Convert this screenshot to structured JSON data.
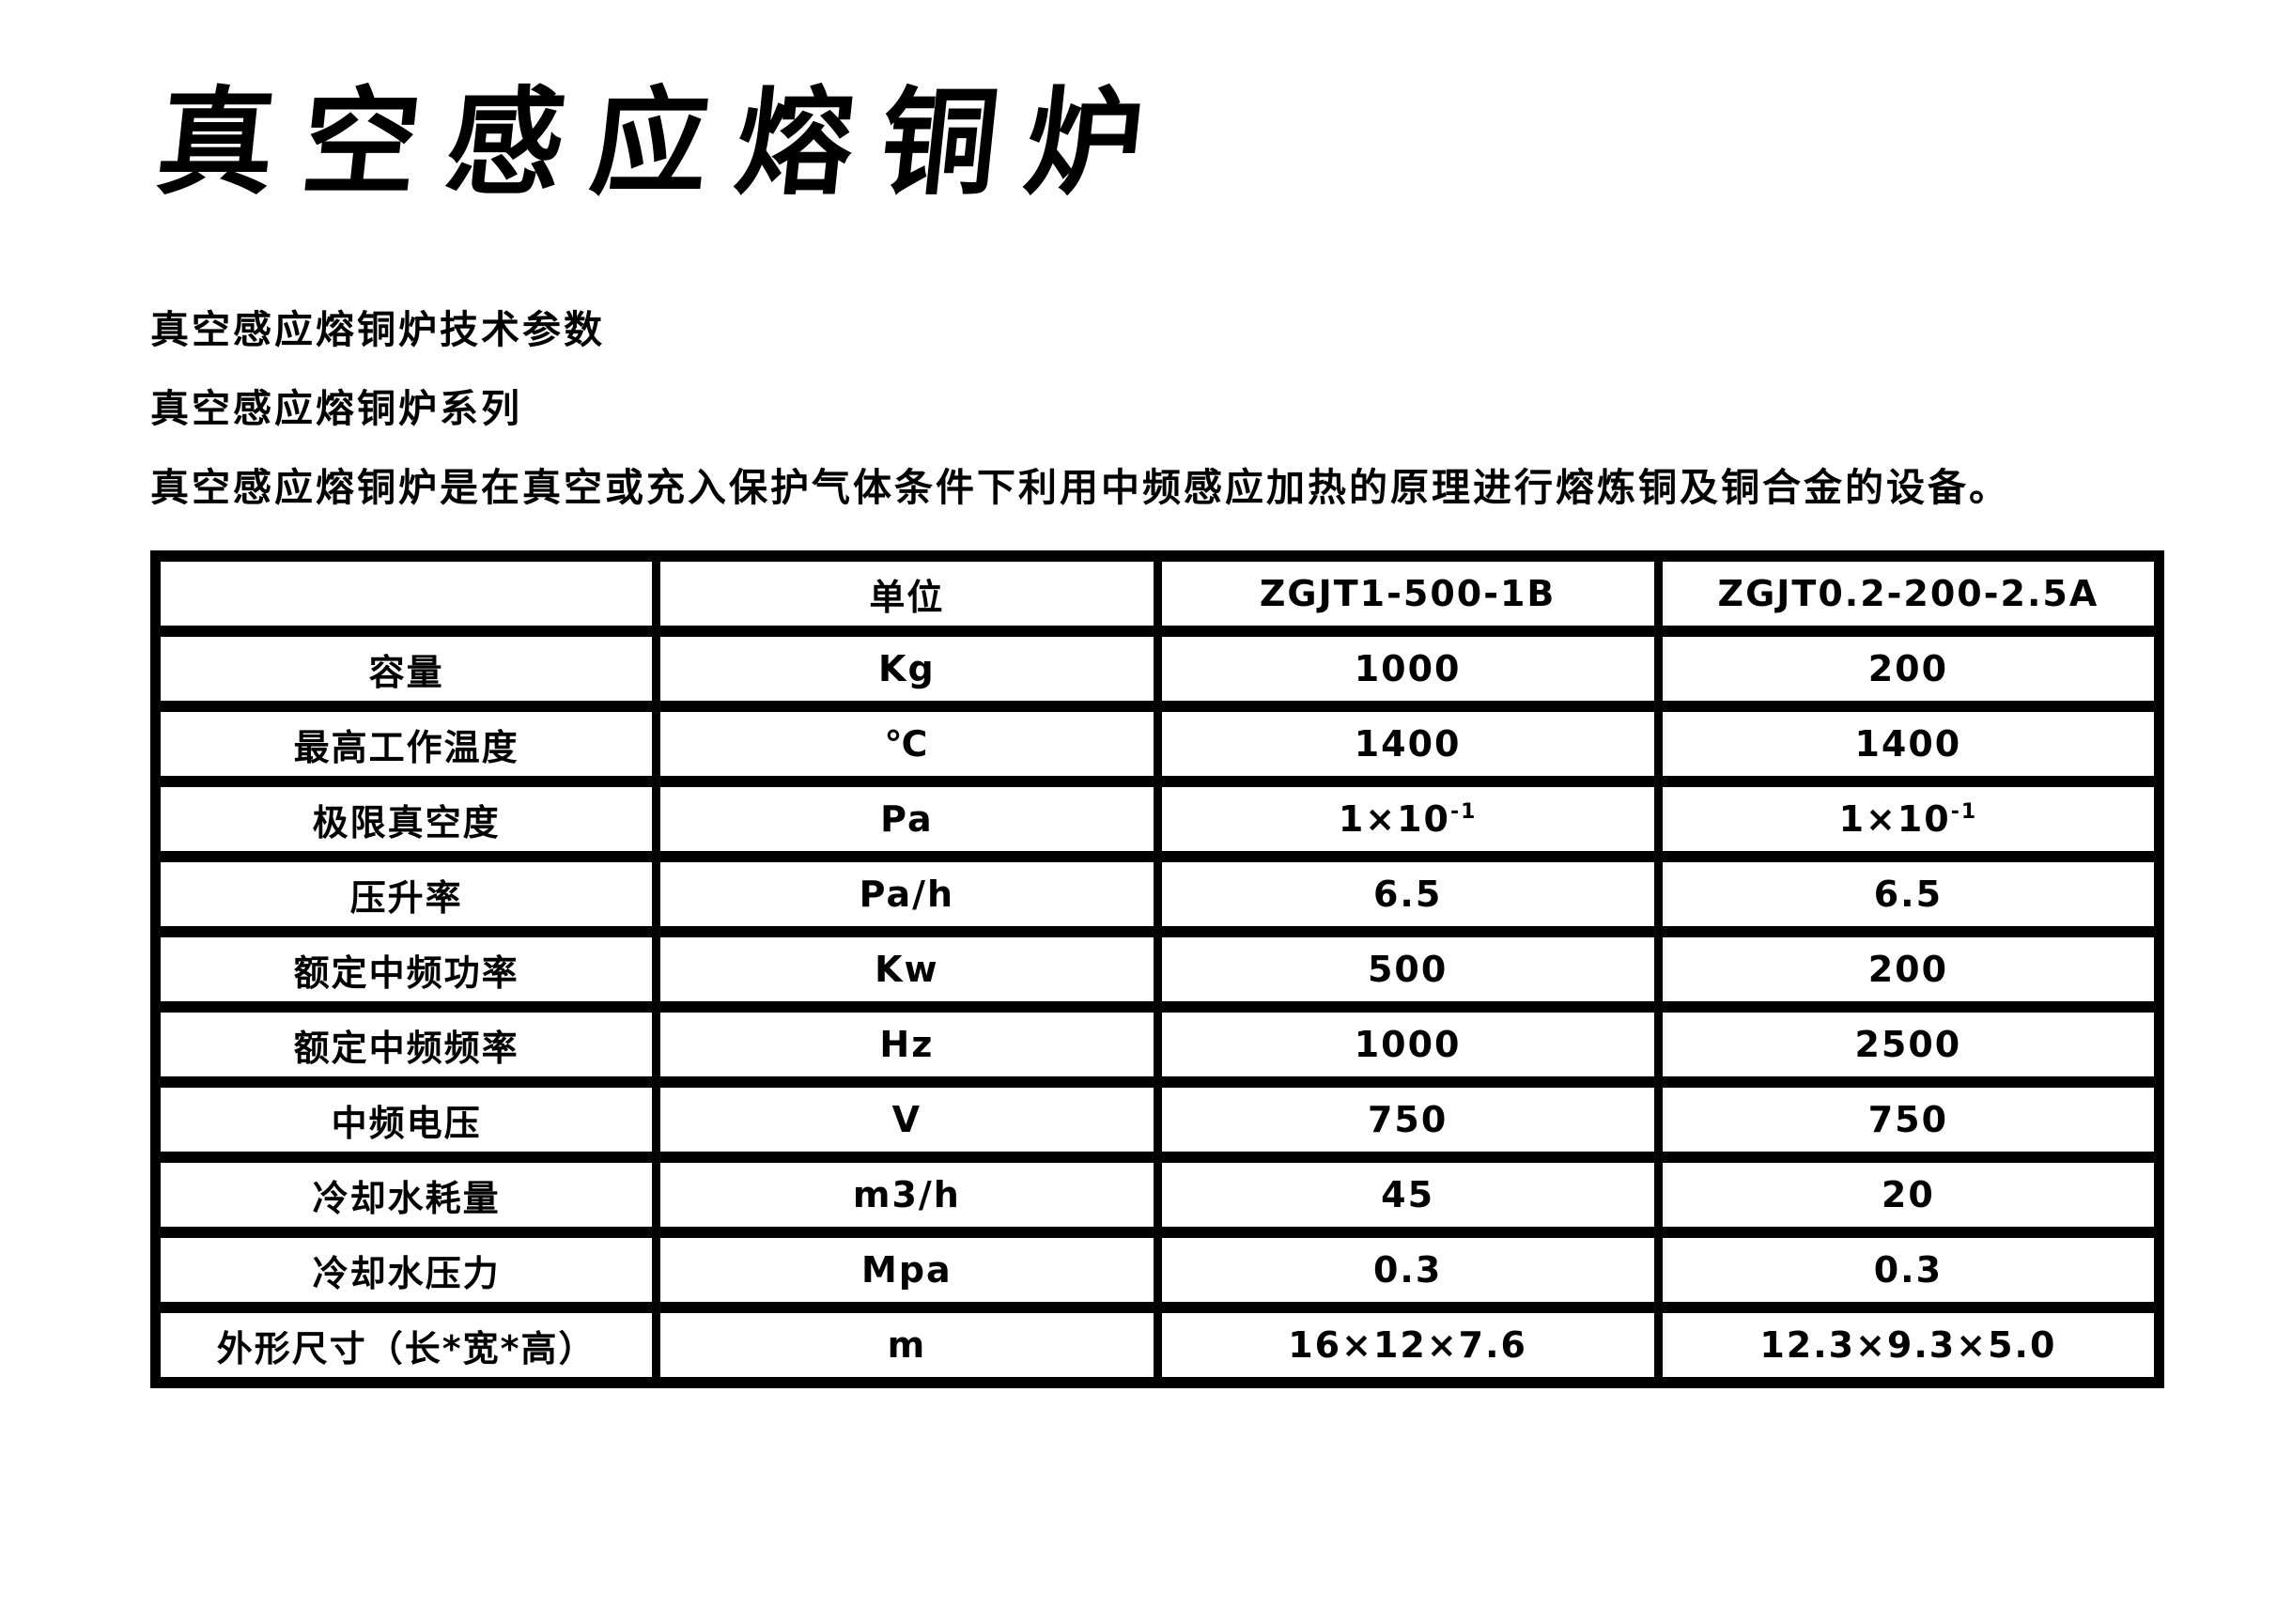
{
  "title": "真空感应熔铜炉",
  "lines": [
    "真空感应熔铜炉技术参数",
    "真空感应熔铜炉系列",
    "真空感应熔铜炉是在真空或充入保护气体条件下利用中频感应加热的原理进行熔炼铜及铜合金的设备。"
  ],
  "table": {
    "headers": [
      "",
      "单位",
      "ZGJT1-500-1B",
      "ZGJT0.2-200-2.5A"
    ],
    "rows": [
      {
        "param": "容量",
        "unit": "Kg",
        "a": "1000",
        "b": "200"
      },
      {
        "param": "最高工作温度",
        "unit": "℃",
        "a": "1400",
        "b": "1400"
      },
      {
        "param": "极限真空度",
        "unit": "Pa",
        "a": "1×10",
        "a_exp": "-1",
        "b": "1×10",
        "b_exp": "-1"
      },
      {
        "param": "压升率",
        "unit": "Pa/h",
        "a": "6.5",
        "b": "6.5"
      },
      {
        "param": "额定中频功率",
        "unit": "Kw",
        "a": "500",
        "b": "200"
      },
      {
        "param": "额定中频频率",
        "unit": "Hz",
        "a": "1000",
        "b": "2500"
      },
      {
        "param": "中频电压",
        "unit": "V",
        "a": "750",
        "b": "750"
      },
      {
        "param": "冷却水耗量",
        "unit": "m3/h",
        "a": "45",
        "b": "20"
      },
      {
        "param": "冷却水压力",
        "unit": "Mpa",
        "a": "0.3",
        "b": "0.3"
      },
      {
        "param": "外形尺寸（长*宽*高）",
        "unit": "m",
        "a": "16×12×7.6",
        "b": "12.3×9.3×5.0"
      }
    ]
  }
}
